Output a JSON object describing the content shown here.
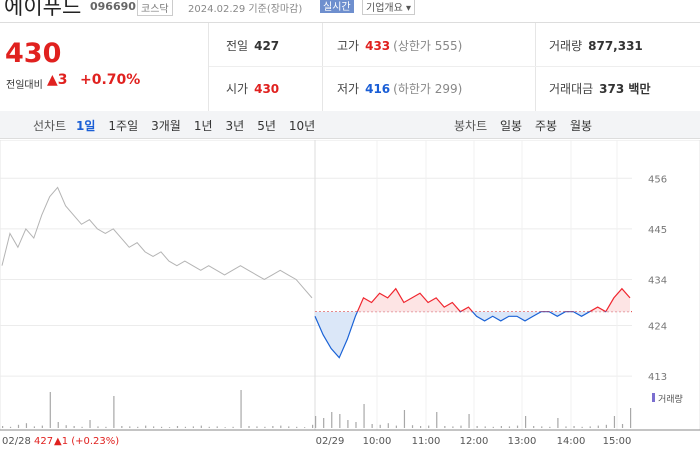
{
  "header": {
    "title": "에이푸드",
    "code": "096690",
    "market": "코스닥",
    "date": "2024.02.29 기준(장마감)",
    "realtime": "실시간",
    "overview": "기업개요 ▾"
  },
  "quote": {
    "price": "430",
    "change_label": "전일대비",
    "change": "▲3",
    "change_rate": "+0.70%"
  },
  "stats": [
    {
      "label": "전일",
      "value": "427",
      "color": "#333"
    },
    {
      "label": "고가",
      "value": "433",
      "note": "(상한가 555)",
      "color": "#e0211f"
    },
    {
      "label": "거래량",
      "value": "877,331",
      "color": "#333"
    },
    {
      "label": "시가",
      "value": "430",
      "color": "#e0211f"
    },
    {
      "label": "저가",
      "value": "416",
      "note": "(하한가 299)",
      "color": "#1a5ed6"
    },
    {
      "label": "거래대금",
      "value": "373 백만",
      "color": "#333"
    }
  ],
  "toolbar": {
    "line_label": "선차트",
    "periods": [
      "1일",
      "1주일",
      "3개월",
      "1년",
      "3년",
      "5년",
      "10년"
    ],
    "active": 0,
    "candle_label": "봉차트",
    "candles": [
      "일봉",
      "주봉",
      "월봉"
    ]
  },
  "chart_data": {
    "type": "line",
    "ylim": [
      411.5,
      464.1
    ],
    "yticks": [
      413,
      424,
      434,
      445,
      456
    ],
    "baseline": 427,
    "x_labels": [
      "02/28",
      "02/29",
      "10:00",
      "11:00",
      "12:00",
      "13:00",
      "14:00",
      "15:00"
    ],
    "prev_close": {
      "value": "427",
      "change": "▲1 (+0.23%)"
    },
    "series": [
      {
        "color": "#b4b4b4",
        "values": [
          437,
          444,
          441,
          445,
          443,
          448,
          452,
          454,
          450,
          448,
          446,
          447,
          445,
          444,
          445,
          443,
          441,
          442,
          440,
          439,
          440,
          438,
          437,
          438,
          437,
          436,
          437,
          436,
          435,
          436,
          437,
          436,
          435,
          434,
          435,
          436,
          435,
          434,
          432,
          430
        ]
      },
      {
        "color_up": "#f0262f",
        "color_down": "#1a62d6",
        "values": [
          426,
          422,
          419,
          417,
          421,
          426,
          430,
          429,
          431,
          430,
          432,
          429,
          430,
          431,
          429,
          430,
          428,
          429,
          427,
          428,
          426,
          425,
          426,
          425,
          426,
          426,
          425,
          426,
          427,
          427,
          426,
          427,
          427,
          426,
          427,
          428,
          427,
          430,
          432,
          430
        ]
      }
    ],
    "volume": {
      "name": "거래량",
      "color": "#a8a8a8",
      "ylim": [
        0,
        100000
      ],
      "values": [
        5000,
        3000,
        8000,
        12000,
        4000,
        6000,
        90000,
        15000,
        7000,
        5000,
        3000,
        20000,
        4000,
        3000,
        80000,
        5000,
        4000,
        3000,
        6000,
        4000,
        3000,
        2000,
        5000,
        3000,
        4000,
        6000,
        3000,
        4000,
        2000,
        3000,
        95000,
        5000,
        4000,
        3000,
        5000,
        6000,
        4000,
        3000,
        2000,
        8000,
        30000,
        25000,
        40000,
        35000,
        20000,
        15000,
        60000,
        10000,
        8000,
        12000,
        6000,
        45000,
        7000,
        5000,
        6000,
        40000,
        5000,
        4000,
        6000,
        35000,
        5000,
        4000,
        3000,
        5000,
        4000,
        6000,
        30000,
        5000,
        4000,
        3000,
        25000,
        4000,
        5000,
        3000,
        4000,
        6000,
        8000,
        30000,
        10000,
        50000
      ]
    }
  }
}
